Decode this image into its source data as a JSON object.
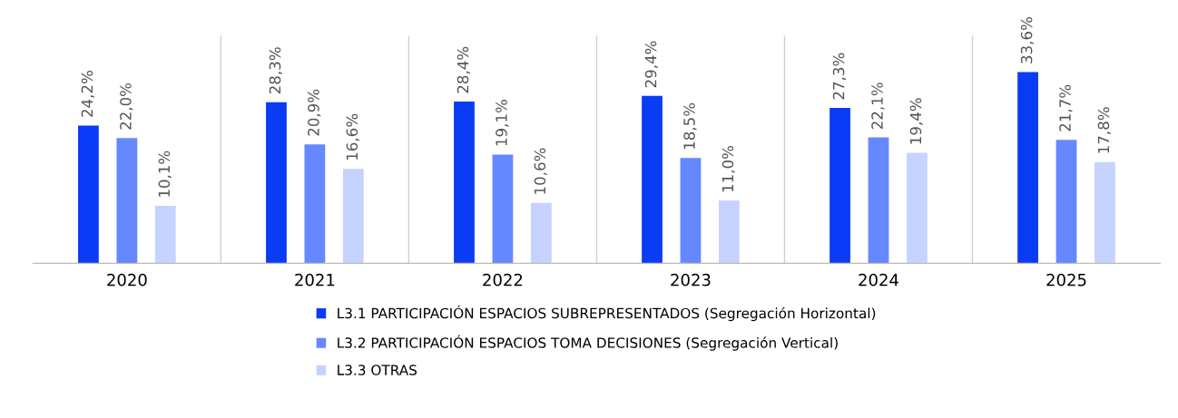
{
  "chart_data": {
    "type": "bar",
    "categories": [
      "2020",
      "2021",
      "2022",
      "2023",
      "2024",
      "2025"
    ],
    "series": [
      {
        "name": "L3.1 PARTICIPACIÓN ESPACIOS SUBREPRESENTADOS (Segregación Horizontal)",
        "color": "#0a3cf5",
        "values": [
          24.2,
          28.3,
          28.4,
          29.4,
          27.3,
          33.6
        ],
        "value_labels": [
          "24,2%",
          "28,3%",
          "28,4%",
          "29,4%",
          "27,3%",
          "33,6%"
        ]
      },
      {
        "name": "L3.2 PARTICIPACIÓN ESPACIOS TOMA DECISIONES (Segregación Vertical)",
        "color": "#6688ff",
        "values": [
          22.0,
          20.9,
          19.1,
          18.5,
          22.1,
          21.7
        ],
        "value_labels": [
          "22,0%",
          "20,9%",
          "19,1%",
          "18,5%",
          "22,1%",
          "21,7%"
        ]
      },
      {
        "name": "L3.3 OTRAS",
        "color": "#c6d3ff",
        "values": [
          10.1,
          16.6,
          10.6,
          11.0,
          19.4,
          17.8
        ],
        "value_labels": [
          "10,1%",
          "16,6%",
          "10,6%",
          "11,0%",
          "19,4%",
          "17,8%"
        ]
      }
    ],
    "ylim": [
      0,
      40
    ],
    "tick_labels": "x",
    "grid": "x",
    "legend": "bottom"
  }
}
